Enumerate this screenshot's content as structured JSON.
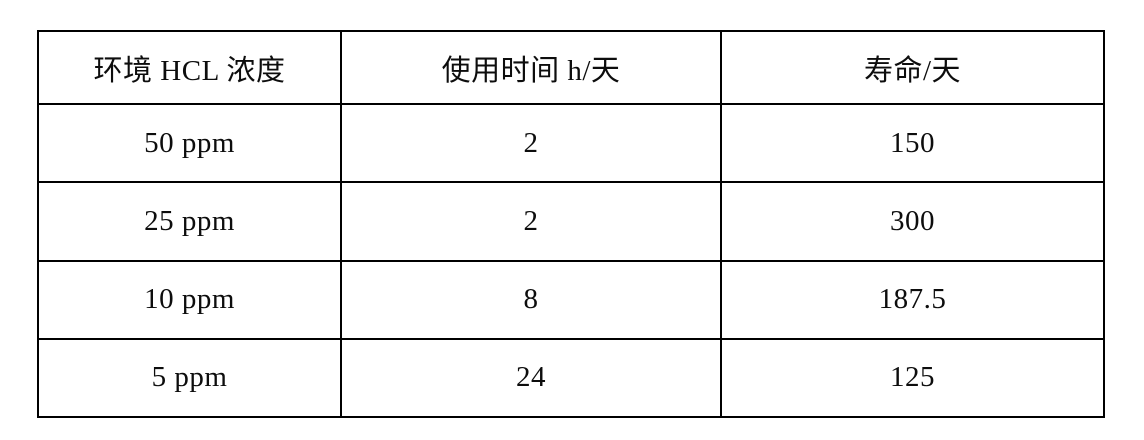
{
  "table": {
    "headers": [
      "环境 HCL 浓度",
      "使用时间 h/天",
      "寿命/天"
    ],
    "rows": [
      [
        "50 ppm",
        "2",
        "150"
      ],
      [
        "25 ppm",
        "2",
        "300"
      ],
      [
        "10 ppm",
        "8",
        "187.5"
      ],
      [
        "5 ppm",
        "24",
        "125"
      ]
    ]
  },
  "colors": {
    "border": "#000000",
    "text": "#0d0d0d",
    "background": "#ffffff"
  }
}
